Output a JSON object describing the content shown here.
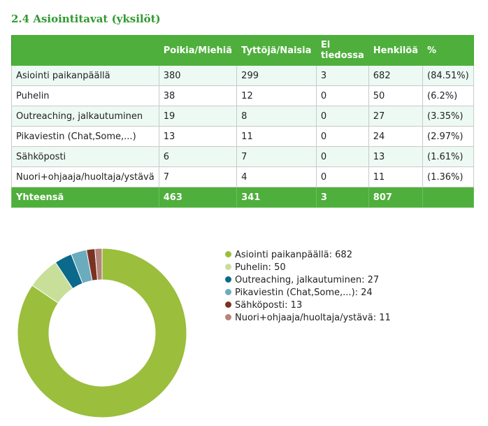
{
  "section_title": "2.4 Asiointitavat (yksilöt)",
  "table": {
    "headers": [
      "",
      "Poikia/Miehiä",
      "Tyttöjä/Naisia",
      "Ei tiedossa",
      "Henkilöä",
      "%"
    ],
    "rows": [
      [
        "Asiointi paikanpäällä",
        "380",
        "299",
        "3",
        "682",
        "(84.51%)"
      ],
      [
        "Puhelin",
        "38",
        "12",
        "0",
        "50",
        "(6.2%)"
      ],
      [
        "Outreaching, jalkautuminen",
        "19",
        "8",
        "0",
        "27",
        "(3.35%)"
      ],
      [
        "Pikaviestin (Chat,Some,...)",
        "13",
        "11",
        "0",
        "24",
        "(2.97%)"
      ],
      [
        "Sähköposti",
        "6",
        "7",
        "0",
        "13",
        "(1.61%)"
      ],
      [
        "Nuori+ohjaaja/huoltaja/ystävä",
        "7",
        "4",
        "0",
        "11",
        "(1.36%)"
      ]
    ],
    "total": [
      "Yhteensä",
      "463",
      "341",
      "3",
      "807",
      ""
    ]
  },
  "chart_data": {
    "type": "pie",
    "style": "donut",
    "labels": [
      "Asiointi paikanpäällä",
      "Puhelin",
      "Outreaching, jalkautuminen",
      "Pikaviestin (Chat,Some,...)",
      "Sähköposti",
      "Nuori+ohjaaja/huoltaja/ystävä"
    ],
    "values": [
      682,
      50,
      27,
      24,
      13,
      11
    ],
    "colors": [
      "#9bbe3c",
      "#c8df9a",
      "#0b6a8c",
      "#6aacbe",
      "#7a3323",
      "#b5857a"
    ],
    "legend_placement": "right"
  },
  "legend": {
    "items": [
      "Asiointi paikanpäällä: 682",
      "Puhelin: 50",
      "Outreaching, jalkautuminen: 27",
      "Pikaviestin (Chat,Some,...): 24",
      "Sähköposti: 13",
      "Nuori+ohjaaja/huoltaja/ystävä: 11"
    ]
  }
}
